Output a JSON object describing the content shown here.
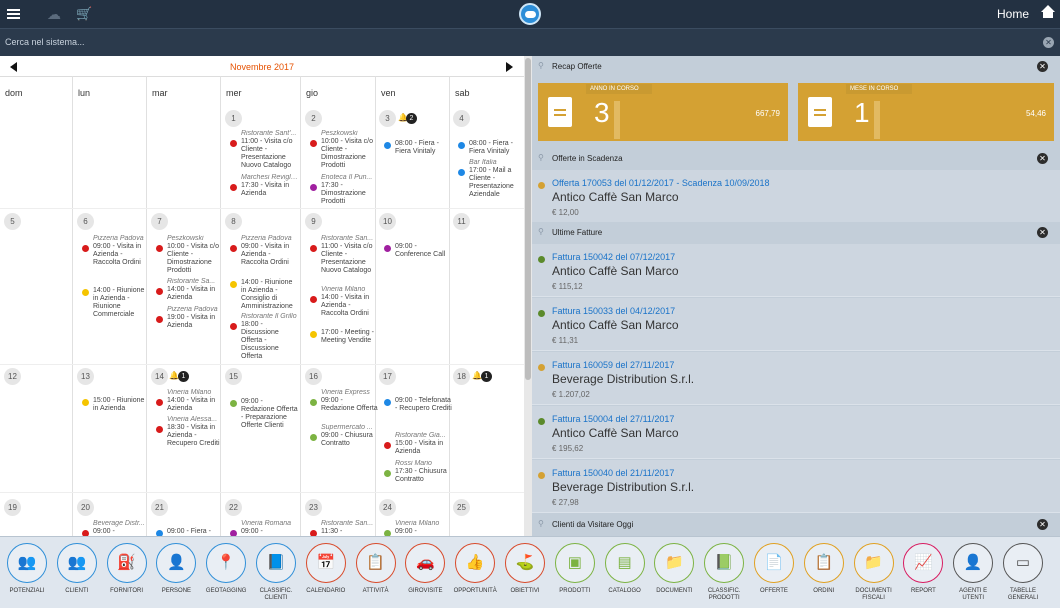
{
  "topbar": {
    "title": "Home",
    "menu_icon": "hamburger-icon",
    "cloud_icon": "cloud-icon",
    "cart_icon": "cart-icon",
    "logo_icon": "app-logo-icon",
    "home_icon": "home-icon"
  },
  "search": {
    "placeholder": "Cerca nel sistema..."
  },
  "calendar": {
    "month": "Novembre 2017",
    "weekdays": [
      "dom",
      "lun",
      "mar",
      "mer",
      "gio",
      "ven",
      "sab"
    ],
    "week1": {
      "d1": {
        "num": "1",
        "e1_place": "Ristorante Sant'...",
        "e1_text": "11:00 - Visita c/o Cliente - Presentazione Nuovo Catalogo",
        "e2_place": "Marchesi Revigli...",
        "e2_text": "17:30 - Visita in Azienda"
      },
      "d2": {
        "num": "2",
        "e1_place": "Peszkowski",
        "e1_text": "10:00 - Visita c/o Cliente - Dimostrazione Prodotti",
        "e2_place": "Enoteca Il Pun...",
        "e2_text": "17:30 - Dimostrazione Prodotti"
      },
      "d3": {
        "num": "3",
        "badge": "2",
        "e1_text": "08:00 - Fiera - Fiera Vinitaly"
      },
      "d4": {
        "num": "4",
        "e1_text": "08:00 - Fiera - Fiera Vinitaly",
        "e2_place": "Bar Italia",
        "e2_text": "17:00 - Mail a Cliente - Presentazione Aziendale"
      }
    },
    "week2": {
      "d5": {
        "num": "5"
      },
      "d6": {
        "num": "6",
        "e1_place": "Pizzeria Padova",
        "e1_text": "09:00 - Visita in Azienda - Raccolta Ordini",
        "e2_text": "14:00 - Riunione in Azienda - Riunione Commerciale"
      },
      "d7": {
        "num": "7",
        "e1_place": "Peszkowski",
        "e1_text": "10:00 - Visita c/o Cliente - Dimostrazione Prodotti",
        "e2_place": "Ristorante Sa...",
        "e2_text": "14:00 - Visita in Azienda",
        "e3_place": "Pizzeria Padova",
        "e3_text": "19:00 - Visita in Azienda"
      },
      "d8": {
        "num": "8",
        "e1_place": "Pizzeria Padova",
        "e1_text": "09:00 - Visita in Azienda - Raccolta Ordini",
        "e2_text": "14:00 - Riunione in Azienda - Consiglio di Amministrazione",
        "e3_place": "Ristorante Il Grillo",
        "e3_text": "18:00 - Discussione Offerta - Discussione Offerta"
      },
      "d9": {
        "num": "9",
        "e1_place": "Ristorante San...",
        "e1_text": "11:00 - Visita c/o Cliente - Presentazione Nuovo Catalogo",
        "e2_place": "Vineria Milano",
        "e2_text": "14:00 - Visita in Azienda - Raccolta Ordini",
        "e3_text": "17:00 - Meeting - Meeting Vendite"
      },
      "d10": {
        "num": "10",
        "e1_text": "09:00 - Conference Call"
      },
      "d11": {
        "num": "11"
      }
    },
    "week3": {
      "d12": {
        "num": "12"
      },
      "d13": {
        "num": "13",
        "e1_text": "15:00 - Riunione in Azienda"
      },
      "d14": {
        "num": "14",
        "badge": "1",
        "e1_place": "Vineria Milano",
        "e1_text": "14:00 - Visita in Azienda",
        "e2_place": "Vineria Alessa...",
        "e2_text": "18:30 - Visita in Azienda - Recupero Crediti"
      },
      "d15": {
        "num": "15",
        "e1_text": "09:00 - Redazione Offerta - Preparazione Offerte Clienti"
      },
      "d16": {
        "num": "16",
        "e1_place": "Vineria Express",
        "e1_text": "09:00 - Redazione Offerta",
        "e2_place": "Supermercato ...",
        "e2_text": "09:00 - Chiusura Contratto"
      },
      "d17": {
        "num": "17",
        "e1_text": "09:00 - Telefonata - Recupero Crediti",
        "e2_place": "Ristorante Gia...",
        "e2_text": "15:00 - Visita in Azienda",
        "e3_place": "Rossi Mario",
        "e3_text": "17:30 - Chiusura Contratto"
      },
      "d18": {
        "num": "18",
        "badge": "1"
      }
    },
    "week4": {
      "d19": {
        "num": "19"
      },
      "d20": {
        "num": "20",
        "e1_place": "Beverage Distr...",
        "e1_text": "09:00 -"
      },
      "d21": {
        "num": "21",
        "e1_text": "09:00 - Fiera -"
      },
      "d22": {
        "num": "22",
        "e1_place": "Vineria Romana",
        "e1_text": "09:00 -"
      },
      "d23": {
        "num": "23",
        "e1_place": "Ristorante San...",
        "e1_text": "11:30 -"
      },
      "d24": {
        "num": "24",
        "e1_place": "Vineria Milano",
        "e1_text": "09:00 -"
      },
      "d25": {
        "num": "25"
      }
    }
  },
  "recap": {
    "title": "Recap Offerte",
    "anno": {
      "caption": "Anno in corso",
      "count": "3",
      "amount": "667,79"
    },
    "mese": {
      "caption": "Mese in corso",
      "count": "1",
      "amount": "54,46"
    }
  },
  "scadenza": {
    "title": "Offerte in Scadenza",
    "items": [
      {
        "line1": "Offerta 170053 del 01/12/2017 - Scadenza 10/09/2018",
        "line2": "Antico Caffè San Marco",
        "line3": "€ 12,00"
      }
    ]
  },
  "fatture": {
    "title": "Ultime Fatture",
    "items": [
      {
        "line1": "Fattura 150042 del 07/12/2017",
        "line2": "Antico Caffè San Marco",
        "line3": "€ 115,12"
      },
      {
        "line1": "Fattura 150033 del 04/12/2017",
        "line2": "Antico Caffè San Marco",
        "line3": "€ 11,31"
      },
      {
        "line1": "Fattura 160059 del 27/11/2017",
        "line2": "Beverage Distribution S.r.l.",
        "line3": "€ 1.207,02"
      },
      {
        "line1": "Fattura 150004 del 27/11/2017",
        "line2": "Antico Caffè San Marco",
        "line3": "€ 195,62"
      },
      {
        "line1": "Fattura 150040 del 21/11/2017",
        "line2": "Beverage Distribution S.r.l.",
        "line3": "€ 27,98"
      }
    ]
  },
  "clienti": {
    "title": "Clienti da Visitare Oggi"
  },
  "dock": [
    {
      "label": "Potenziali",
      "glyph": "👥",
      "icon": "people-icon"
    },
    {
      "label": "Clienti",
      "glyph": "👥",
      "icon": "group-icon"
    },
    {
      "label": "Fornitori",
      "glyph": "⛽",
      "icon": "fuel-icon"
    },
    {
      "label": "Persone",
      "glyph": "👤",
      "icon": "person-icon"
    },
    {
      "label": "Geotagging",
      "glyph": "📍",
      "icon": "pin-icon"
    },
    {
      "label": "Classific. Clienti",
      "glyph": "📘",
      "icon": "book-icon"
    },
    {
      "label": "Calendario",
      "glyph": "📅",
      "icon": "calendar-icon"
    },
    {
      "label": "Attività",
      "glyph": "📋",
      "icon": "clipboard-icon"
    },
    {
      "label": "Girovisite",
      "glyph": "🚗",
      "icon": "car-icon"
    },
    {
      "label": "Opportunità",
      "glyph": "👍",
      "icon": "thumbs-up-icon"
    },
    {
      "label": "Obiettivi",
      "glyph": "⛳",
      "icon": "flag-icon"
    },
    {
      "label": "Prodotti",
      "glyph": "▣",
      "icon": "products-icon"
    },
    {
      "label": "Catalogo",
      "glyph": "▤",
      "icon": "catalog-icon"
    },
    {
      "label": "Documenti",
      "glyph": "📁",
      "icon": "folder-star-icon"
    },
    {
      "label": "Classific. Prodotti",
      "glyph": "📗",
      "icon": "book-green-icon"
    },
    {
      "label": "Offerte",
      "glyph": "📄",
      "icon": "document-icon"
    },
    {
      "label": "Ordini",
      "glyph": "📋",
      "icon": "order-icon"
    },
    {
      "label": "Documenti Fiscali",
      "glyph": "📁",
      "icon": "folder-icon"
    },
    {
      "label": "Report",
      "glyph": "📈",
      "icon": "trending-icon"
    },
    {
      "label": "Agenti e Utenti",
      "glyph": "👤",
      "icon": "agent-icon"
    },
    {
      "label": "Tabelle Generali",
      "glyph": "▭",
      "icon": "window-icon"
    }
  ],
  "colors": {
    "red": "#d81b1b",
    "yellow": "#f5c400",
    "blue": "#1e88e5",
    "green": "#7cb342",
    "purple": "#a020a0",
    "accent": "#e65100",
    "card": "#d4a133"
  }
}
